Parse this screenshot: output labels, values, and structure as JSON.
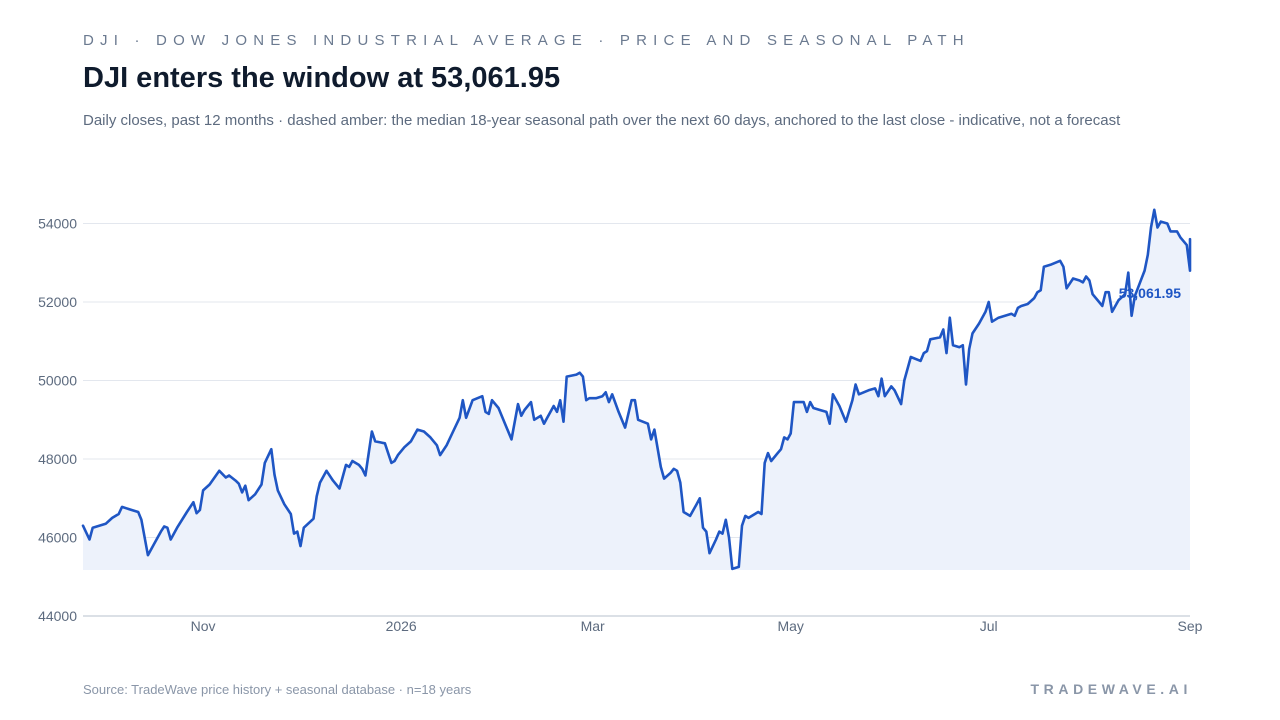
{
  "header": {
    "kicker": "DJI · DOW JONES INDUSTRIAL AVERAGE · PRICE AND SEASONAL PATH",
    "title": "DJI enters the window at 53,061.95",
    "subtitle": "Daily closes, past 12 months · dashed amber: the median 18-year seasonal path over the next 60 days, anchored to the last close - indicative, not a forecast"
  },
  "footer": {
    "source": "Source: TradeWave price history + seasonal database · n=18 years",
    "brand": "TRADEWAVE.AI"
  },
  "chart_data": {
    "type": "area",
    "title": "DJI enters the window at 53,061.95",
    "xlabel": "",
    "ylabel": "",
    "ylim": [
      44000,
      54600
    ],
    "xlim": [
      "2025-09-25",
      "2026-09-01"
    ],
    "grid": true,
    "legend": "none",
    "colors": {
      "line": "#1f56c4",
      "fill": "#edf2fb",
      "grid": "#e3e7ee",
      "axis": "#cfd5de"
    },
    "y_ticks": [
      44000,
      46000,
      48000,
      50000,
      52000,
      54000
    ],
    "y_tick_labels": [
      "44000",
      "46000",
      "48000",
      "50000",
      "52000",
      "54000"
    ],
    "x_ticks": [
      {
        "date": "2025-11-01",
        "label": "Nov"
      },
      {
        "date": "2026-01-01",
        "label": "2026"
      },
      {
        "date": "2026-03-01",
        "label": "Mar"
      },
      {
        "date": "2026-05-01",
        "label": "May"
      },
      {
        "date": "2026-07-01",
        "label": "Jul"
      },
      {
        "date": "2026-09-01",
        "label": "Sep"
      }
    ],
    "last_value_label": "53,061.95",
    "series": [
      {
        "points": [
          [
            "2025-09-25",
            46300
          ],
          [
            "2025-09-27",
            45950
          ],
          [
            "2025-09-28",
            46250
          ],
          [
            "2025-09-30",
            46300
          ],
          [
            "2025-10-02",
            46350
          ],
          [
            "2025-10-04",
            46500
          ],
          [
            "2025-10-06",
            46600
          ],
          [
            "2025-10-07",
            46780
          ],
          [
            "2025-10-10",
            46700
          ],
          [
            "2025-10-12",
            46650
          ],
          [
            "2025-10-13",
            46450
          ],
          [
            "2025-10-15",
            45550
          ],
          [
            "2025-10-17",
            45850
          ],
          [
            "2025-10-19",
            46150
          ],
          [
            "2025-10-20",
            46280
          ],
          [
            "2025-10-21",
            46250
          ],
          [
            "2025-10-22",
            45950
          ],
          [
            "2025-10-24",
            46250
          ],
          [
            "2025-10-27",
            46650
          ],
          [
            "2025-10-29",
            46900
          ],
          [
            "2025-10-30",
            46620
          ],
          [
            "2025-10-31",
            46700
          ],
          [
            "2025-11-01",
            47200
          ],
          [
            "2025-11-03",
            47350
          ],
          [
            "2025-11-06",
            47700
          ],
          [
            "2025-11-08",
            47530
          ],
          [
            "2025-11-09",
            47580
          ],
          [
            "2025-11-11",
            47450
          ],
          [
            "2025-11-12",
            47370
          ],
          [
            "2025-11-13",
            47150
          ],
          [
            "2025-11-14",
            47320
          ],
          [
            "2025-11-15",
            46950
          ],
          [
            "2025-11-17",
            47100
          ],
          [
            "2025-11-19",
            47350
          ],
          [
            "2025-11-20",
            47900
          ],
          [
            "2025-11-22",
            48250
          ],
          [
            "2025-11-23",
            47600
          ],
          [
            "2025-11-24",
            47200
          ],
          [
            "2025-11-26",
            46850
          ],
          [
            "2025-11-28",
            46600
          ],
          [
            "2025-11-29",
            46100
          ],
          [
            "2025-11-30",
            46150
          ],
          [
            "2025-12-01",
            45780
          ],
          [
            "2025-12-02",
            46250
          ],
          [
            "2025-12-05",
            46480
          ],
          [
            "2025-12-06",
            47050
          ],
          [
            "2025-12-07",
            47400
          ],
          [
            "2025-12-09",
            47700
          ],
          [
            "2025-12-11",
            47450
          ],
          [
            "2025-12-13",
            47250
          ],
          [
            "2025-12-15",
            47850
          ],
          [
            "2025-12-16",
            47800
          ],
          [
            "2025-12-17",
            47950
          ],
          [
            "2025-12-19",
            47850
          ],
          [
            "2025-12-20",
            47750
          ],
          [
            "2025-12-21",
            47580
          ],
          [
            "2025-12-23",
            48700
          ],
          [
            "2025-12-24",
            48450
          ],
          [
            "2025-12-27",
            48400
          ],
          [
            "2025-12-29",
            47900
          ],
          [
            "2025-12-30",
            47950
          ],
          [
            "2025-12-31",
            48100
          ],
          [
            "2026-01-02",
            48300
          ],
          [
            "2026-01-04",
            48450
          ],
          [
            "2026-01-06",
            48750
          ],
          [
            "2026-01-08",
            48700
          ],
          [
            "2026-01-10",
            48550
          ],
          [
            "2026-01-12",
            48350
          ],
          [
            "2026-01-13",
            48100
          ],
          [
            "2026-01-15",
            48350
          ],
          [
            "2026-01-17",
            48700
          ],
          [
            "2026-01-19",
            49050
          ],
          [
            "2026-01-20",
            49500
          ],
          [
            "2026-01-21",
            49050
          ],
          [
            "2026-01-23",
            49500
          ],
          [
            "2026-01-26",
            49600
          ],
          [
            "2026-01-27",
            49200
          ],
          [
            "2026-01-28",
            49150
          ],
          [
            "2026-01-29",
            49500
          ],
          [
            "2026-01-31",
            49300
          ],
          [
            "2026-02-02",
            48900
          ],
          [
            "2026-02-04",
            48500
          ],
          [
            "2026-02-06",
            49400
          ],
          [
            "2026-02-07",
            49100
          ],
          [
            "2026-02-08",
            49250
          ],
          [
            "2026-02-10",
            49450
          ],
          [
            "2026-02-11",
            49000
          ],
          [
            "2026-02-13",
            49100
          ],
          [
            "2026-02-14",
            48900
          ],
          [
            "2026-02-15",
            49050
          ],
          [
            "2026-02-17",
            49350
          ],
          [
            "2026-02-18",
            49200
          ],
          [
            "2026-02-19",
            49500
          ],
          [
            "2026-02-20",
            48950
          ],
          [
            "2026-02-21",
            50100
          ],
          [
            "2026-02-24",
            50150
          ],
          [
            "2026-02-25",
            50200
          ],
          [
            "2026-02-26",
            50100
          ],
          [
            "2026-02-27",
            49500
          ],
          [
            "2026-02-28",
            49550
          ],
          [
            "2026-03-02",
            49550
          ],
          [
            "2026-03-04",
            49600
          ],
          [
            "2026-03-05",
            49700
          ],
          [
            "2026-03-06",
            49450
          ],
          [
            "2026-03-07",
            49650
          ],
          [
            "2026-03-09",
            49200
          ],
          [
            "2026-03-11",
            48800
          ],
          [
            "2026-03-13",
            49500
          ],
          [
            "2026-03-14",
            49500
          ],
          [
            "2026-03-15",
            49000
          ],
          [
            "2026-03-18",
            48900
          ],
          [
            "2026-03-19",
            48500
          ],
          [
            "2026-03-20",
            48750
          ],
          [
            "2026-03-22",
            47800
          ],
          [
            "2026-03-23",
            47500
          ],
          [
            "2026-03-25",
            47650
          ],
          [
            "2026-03-26",
            47750
          ],
          [
            "2026-03-27",
            47700
          ],
          [
            "2026-03-28",
            47400
          ],
          [
            "2026-03-29",
            46650
          ],
          [
            "2026-03-31",
            46550
          ],
          [
            "2026-04-02",
            46850
          ],
          [
            "2026-04-03",
            47000
          ],
          [
            "2026-04-04",
            46250
          ],
          [
            "2026-04-05",
            46150
          ],
          [
            "2026-04-06",
            45600
          ],
          [
            "2026-04-08",
            45950
          ],
          [
            "2026-04-09",
            46150
          ],
          [
            "2026-04-10",
            46100
          ],
          [
            "2026-04-11",
            46450
          ],
          [
            "2026-04-12",
            46000
          ],
          [
            "2026-04-13",
            45200
          ],
          [
            "2026-04-15",
            45250
          ],
          [
            "2026-04-16",
            46300
          ],
          [
            "2026-04-17",
            46550
          ],
          [
            "2026-04-18",
            46500
          ],
          [
            "2026-04-21",
            46650
          ],
          [
            "2026-04-22",
            46600
          ],
          [
            "2026-04-23",
            47900
          ],
          [
            "2026-04-24",
            48150
          ],
          [
            "2026-04-25",
            47950
          ],
          [
            "2026-04-27",
            48150
          ],
          [
            "2026-04-28",
            48250
          ],
          [
            "2026-04-29",
            48550
          ],
          [
            "2026-04-30",
            48500
          ],
          [
            "2026-05-01",
            48650
          ],
          [
            "2026-05-02",
            49450
          ],
          [
            "2026-05-05",
            49450
          ],
          [
            "2026-05-06",
            49200
          ],
          [
            "2026-05-07",
            49450
          ],
          [
            "2026-05-08",
            49300
          ],
          [
            "2026-05-10",
            49250
          ],
          [
            "2026-05-12",
            49200
          ],
          [
            "2026-05-13",
            48900
          ],
          [
            "2026-05-14",
            49650
          ],
          [
            "2026-05-16",
            49350
          ],
          [
            "2026-05-18",
            48950
          ],
          [
            "2026-05-20",
            49500
          ],
          [
            "2026-05-21",
            49900
          ],
          [
            "2026-05-22",
            49650
          ],
          [
            "2026-05-25",
            49750
          ],
          [
            "2026-05-27",
            49800
          ],
          [
            "2026-05-28",
            49600
          ],
          [
            "2026-05-29",
            50050
          ],
          [
            "2026-05-30",
            49600
          ],
          [
            "2026-06-01",
            49850
          ],
          [
            "2026-06-02",
            49750
          ],
          [
            "2026-06-04",
            49400
          ],
          [
            "2026-06-05",
            50000
          ],
          [
            "2026-06-07",
            50600
          ],
          [
            "2026-06-10",
            50500
          ],
          [
            "2026-06-11",
            50700
          ],
          [
            "2026-06-12",
            50750
          ],
          [
            "2026-06-13",
            51050
          ],
          [
            "2026-06-16",
            51100
          ],
          [
            "2026-06-17",
            51300
          ],
          [
            "2026-06-18",
            50700
          ],
          [
            "2026-06-19",
            51600
          ],
          [
            "2026-06-20",
            50900
          ],
          [
            "2026-06-22",
            50850
          ],
          [
            "2026-06-23",
            50900
          ],
          [
            "2026-06-24",
            49900
          ],
          [
            "2026-06-25",
            50800
          ],
          [
            "2026-06-26",
            51200
          ],
          [
            "2026-06-28",
            51450
          ],
          [
            "2026-06-30",
            51750
          ],
          [
            "2026-07-01",
            52000
          ],
          [
            "2026-07-02",
            51500
          ],
          [
            "2026-07-04",
            51600
          ],
          [
            "2026-07-06",
            51650
          ],
          [
            "2026-07-08",
            51700
          ],
          [
            "2026-07-09",
            51650
          ],
          [
            "2026-07-10",
            51850
          ],
          [
            "2026-07-11",
            51900
          ],
          [
            "2026-07-13",
            51950
          ],
          [
            "2026-07-15",
            52100
          ],
          [
            "2026-07-16",
            52250
          ],
          [
            "2026-07-17",
            52300
          ],
          [
            "2026-07-18",
            52900
          ],
          [
            "2026-07-20",
            52950
          ],
          [
            "2026-07-23",
            53050
          ],
          [
            "2026-07-24",
            52900
          ],
          [
            "2026-07-25",
            52350
          ],
          [
            "2026-07-27",
            52600
          ],
          [
            "2026-07-29",
            52550
          ],
          [
            "2026-07-30",
            52500
          ],
          [
            "2026-07-31",
            52650
          ],
          [
            "2026-08-01",
            52550
          ],
          [
            "2026-08-02",
            52200
          ],
          [
            "2026-08-04",
            52000
          ],
          [
            "2026-08-05",
            51900
          ],
          [
            "2026-08-06",
            52250
          ],
          [
            "2026-08-07",
            52250
          ],
          [
            "2026-08-08",
            51750
          ],
          [
            "2026-08-10",
            52050
          ],
          [
            "2026-08-12",
            52200
          ],
          [
            "2026-08-13",
            52750
          ],
          [
            "2026-08-14",
            51650
          ],
          [
            "2026-08-15",
            52150
          ],
          [
            "2026-08-18",
            52800
          ],
          [
            "2026-08-19",
            53200
          ],
          [
            "2026-08-20",
            53900
          ],
          [
            "2026-08-21",
            54350
          ],
          [
            "2026-08-22",
            53900
          ],
          [
            "2026-08-23",
            54050
          ],
          [
            "2026-08-25",
            54000
          ],
          [
            "2026-08-26",
            53800
          ],
          [
            "2026-08-28",
            53800
          ],
          [
            "2026-08-29",
            53650
          ],
          [
            "2026-08-31",
            53450
          ],
          [
            "2026-09-01",
            52800
          ],
          [
            "2026-09-02",
            53300
          ],
          [
            "2026-09-04",
            53400
          ],
          [
            "2026-09-05",
            53600
          ],
          [
            "2026-09-06",
            53500
          ],
          [
            "2026-09-08",
            53550
          ],
          [
            "2026-09-09",
            53450
          ],
          [
            "2026-09-11",
            53200
          ],
          [
            "2026-09-12",
            52800
          ],
          [
            "2026-09-13",
            53150
          ]
        ]
      }
    ]
  }
}
